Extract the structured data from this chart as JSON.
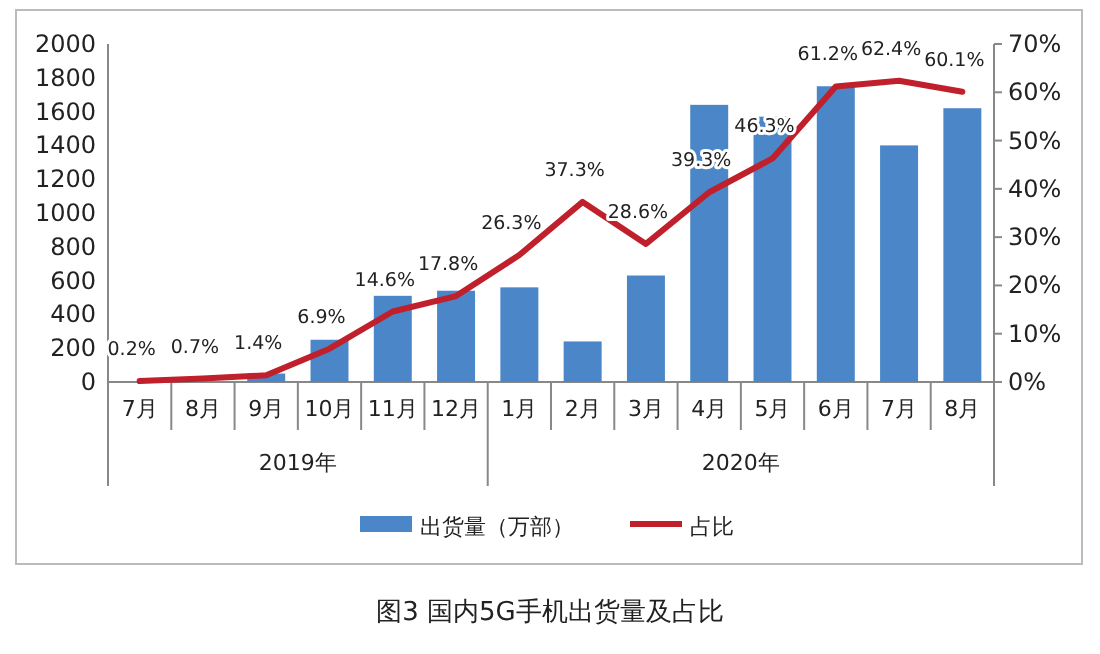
{
  "chart_data": {
    "type": "bar",
    "title": "图3 国内5G手机出货量及占比",
    "categories": [
      "7月",
      "8月",
      "9月",
      "10月",
      "11月",
      "12月",
      "1月",
      "2月",
      "3月",
      "4月",
      "5月",
      "6月",
      "7月",
      "8月"
    ],
    "series": [
      {
        "name": "出货量（万部）",
        "color": "#4a86c8",
        "values": [
          0,
          null,
          50,
          250,
          510,
          540,
          560,
          240,
          630,
          1640,
          1570,
          1750,
          1400,
          1620
        ]
      },
      {
        "name": "占比",
        "type": "line",
        "axis": "y2",
        "color": "#c0202c",
        "data_labels": true,
        "value_labels": [
          "0.2%",
          "0.7%",
          "1.4%",
          "6.9%",
          "14.6%",
          "17.8%",
          "26.3%",
          "37.3%",
          "28.6%",
          "39.3%",
          "46.3%",
          "61.2%",
          "62.4%",
          "60.1%"
        ],
        "values": [
          0.2,
          0.7,
          1.4,
          6.9,
          14.6,
          17.8,
          26.3,
          37.3,
          28.6,
          39.3,
          46.3,
          61.2,
          62.4,
          60.1
        ]
      }
    ],
    "annotations": [
      "2019年",
      "2020年"
    ],
    "ylim": [
      0,
      2000
    ],
    "yticks": [
      0,
      200,
      400,
      600,
      800,
      1000,
      1200,
      1400,
      1600,
      1800,
      2000
    ],
    "y2lim": [
      0,
      70
    ],
    "y2ticks": [
      {
        "value": 0,
        "label": "0%"
      },
      {
        "value": 10,
        "label": "10%"
      },
      {
        "value": 20,
        "label": "20%"
      },
      {
        "value": 30,
        "label": "30%"
      },
      {
        "value": 40,
        "label": "40%"
      },
      {
        "value": 50,
        "label": "50%"
      },
      {
        "value": 60,
        "label": "60%"
      },
      {
        "value": 70,
        "label": "70%"
      }
    ],
    "grid": false,
    "legend": "bottom",
    "marker": "none",
    "line_style": "solid"
  }
}
